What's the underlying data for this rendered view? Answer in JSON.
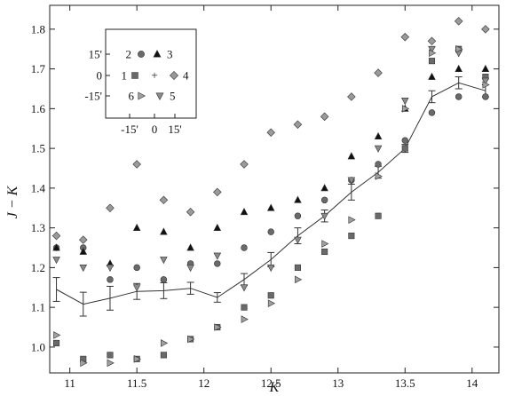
{
  "chart_data": {
    "type": "scatter",
    "xlabel": "K",
    "ylabel": "J − K",
    "xlim": [
      10.85,
      14.2
    ],
    "ylim": [
      0.935,
      1.86
    ],
    "xticks": [
      "11",
      "11.5",
      "12",
      "12.5",
      "13",
      "13.5",
      "14"
    ],
    "yticks": [
      "1.0",
      "1.1",
      "1.2",
      "1.3",
      "1.4",
      "1.5",
      "1.6",
      "1.7",
      "1.8"
    ],
    "grid": false,
    "series": [
      {
        "name": "1",
        "marker": "square",
        "color": "#6a6a6a",
        "x": [
          10.9,
          11.1,
          11.3,
          11.5,
          11.7,
          11.9,
          12.1,
          12.3,
          12.5,
          12.7,
          12.9,
          13.1,
          13.3,
          13.5,
          13.7,
          13.9,
          14.1
        ],
        "y": [
          1.01,
          0.97,
          0.98,
          0.97,
          0.98,
          1.02,
          1.05,
          1.1,
          1.13,
          1.2,
          1.24,
          1.28,
          1.33,
          1.5,
          1.72,
          1.75,
          1.68
        ]
      },
      {
        "name": "2",
        "marker": "circle",
        "color": "#6a6a6a",
        "x": [
          10.9,
          11.1,
          11.3,
          11.5,
          11.7,
          11.9,
          12.1,
          12.3,
          12.5,
          12.7,
          12.9,
          13.1,
          13.3,
          13.5,
          13.7,
          13.9,
          14.1
        ],
        "y": [
          1.25,
          1.25,
          1.17,
          1.2,
          1.17,
          1.21,
          1.21,
          1.25,
          1.29,
          1.33,
          1.37,
          1.42,
          1.46,
          1.52,
          1.59,
          1.63,
          1.63
        ]
      },
      {
        "name": "3",
        "marker": "triangle-up",
        "color": "#111111",
        "x": [
          10.9,
          11.1,
          11.3,
          11.5,
          11.7,
          11.9,
          12.1,
          12.3,
          12.5,
          12.7,
          12.9,
          13.1,
          13.3,
          13.5,
          13.7,
          13.9,
          14.1
        ],
        "y": [
          1.25,
          1.24,
          1.21,
          1.3,
          1.29,
          1.25,
          1.3,
          1.34,
          1.35,
          1.37,
          1.4,
          1.48,
          1.53,
          1.6,
          1.68,
          1.7,
          1.7
        ]
      },
      {
        "name": "4",
        "marker": "diamond",
        "color": "#9a9a9a",
        "x": [
          10.9,
          11.1,
          11.3,
          11.5,
          11.7,
          11.9,
          12.1,
          12.3,
          12.5,
          12.7,
          12.9,
          13.1,
          13.3,
          13.5,
          13.7,
          13.9,
          14.1
        ],
        "y": [
          1.28,
          1.27,
          1.35,
          1.46,
          1.37,
          1.34,
          1.39,
          1.46,
          1.54,
          1.56,
          1.58,
          1.63,
          1.69,
          1.78,
          1.77,
          1.82,
          1.8
        ]
      },
      {
        "name": "5",
        "marker": "triangle-down",
        "color": "#8a8a8a",
        "x": [
          10.9,
          11.1,
          11.3,
          11.5,
          11.7,
          11.9,
          12.1,
          12.3,
          12.5,
          12.7,
          12.9,
          13.1,
          13.3,
          13.5,
          13.7,
          13.9,
          14.1
        ],
        "y": [
          1.22,
          1.2,
          1.2,
          1.15,
          1.22,
          1.2,
          1.23,
          1.15,
          1.2,
          1.27,
          1.33,
          1.42,
          1.5,
          1.62,
          1.75,
          1.74,
          1.67
        ]
      },
      {
        "name": "6",
        "marker": "triangle-right",
        "color": "#a0a0a0",
        "x": [
          10.9,
          11.1,
          11.3,
          11.5,
          11.7,
          11.9,
          12.1,
          12.3,
          12.5,
          12.7,
          12.9,
          13.1,
          13.3,
          13.5,
          13.7,
          13.9,
          14.1
        ],
        "y": [
          1.03,
          0.96,
          0.96,
          0.97,
          1.01,
          1.02,
          1.05,
          1.07,
          1.11,
          1.17,
          1.26,
          1.32,
          1.43,
          1.6,
          1.74,
          1.75,
          1.66
        ]
      }
    ],
    "mean_line": {
      "x": [
        10.9,
        11.1,
        11.3,
        11.5,
        11.7,
        11.9,
        12.1,
        12.3,
        12.5,
        12.7,
        12.9,
        13.1,
        13.3,
        13.5,
        13.7,
        13.9,
        14.1
      ],
      "y": [
        1.145,
        1.108,
        1.123,
        1.14,
        1.142,
        1.148,
        1.125,
        1.17,
        1.22,
        1.28,
        1.33,
        1.39,
        1.44,
        1.5,
        1.63,
        1.665,
        1.645
      ],
      "err": [
        0.03,
        0.03,
        0.03,
        0.02,
        0.02,
        0.015,
        0.012,
        0.015,
        0.018,
        0.02,
        0.015,
        0.02,
        0.015,
        0.01,
        0.015,
        0.015,
        0.015
      ]
    },
    "inset": {
      "xticks": [
        "-15'",
        "0",
        "15'"
      ],
      "yticks": [
        "15'",
        "0",
        "-15'"
      ],
      "center_symbol": "+",
      "fields": [
        {
          "label": "1",
          "marker": "square",
          "color": "#6a6a6a"
        },
        {
          "label": "2",
          "marker": "circle",
          "color": "#6a6a6a"
        },
        {
          "label": "3",
          "marker": "triangle-up",
          "color": "#111111"
        },
        {
          "label": "4",
          "marker": "diamond",
          "color": "#9a9a9a"
        },
        {
          "label": "5",
          "marker": "triangle-down",
          "color": "#8a8a8a"
        },
        {
          "label": "6",
          "marker": "triangle-right",
          "color": "#a0a0a0"
        }
      ]
    }
  }
}
